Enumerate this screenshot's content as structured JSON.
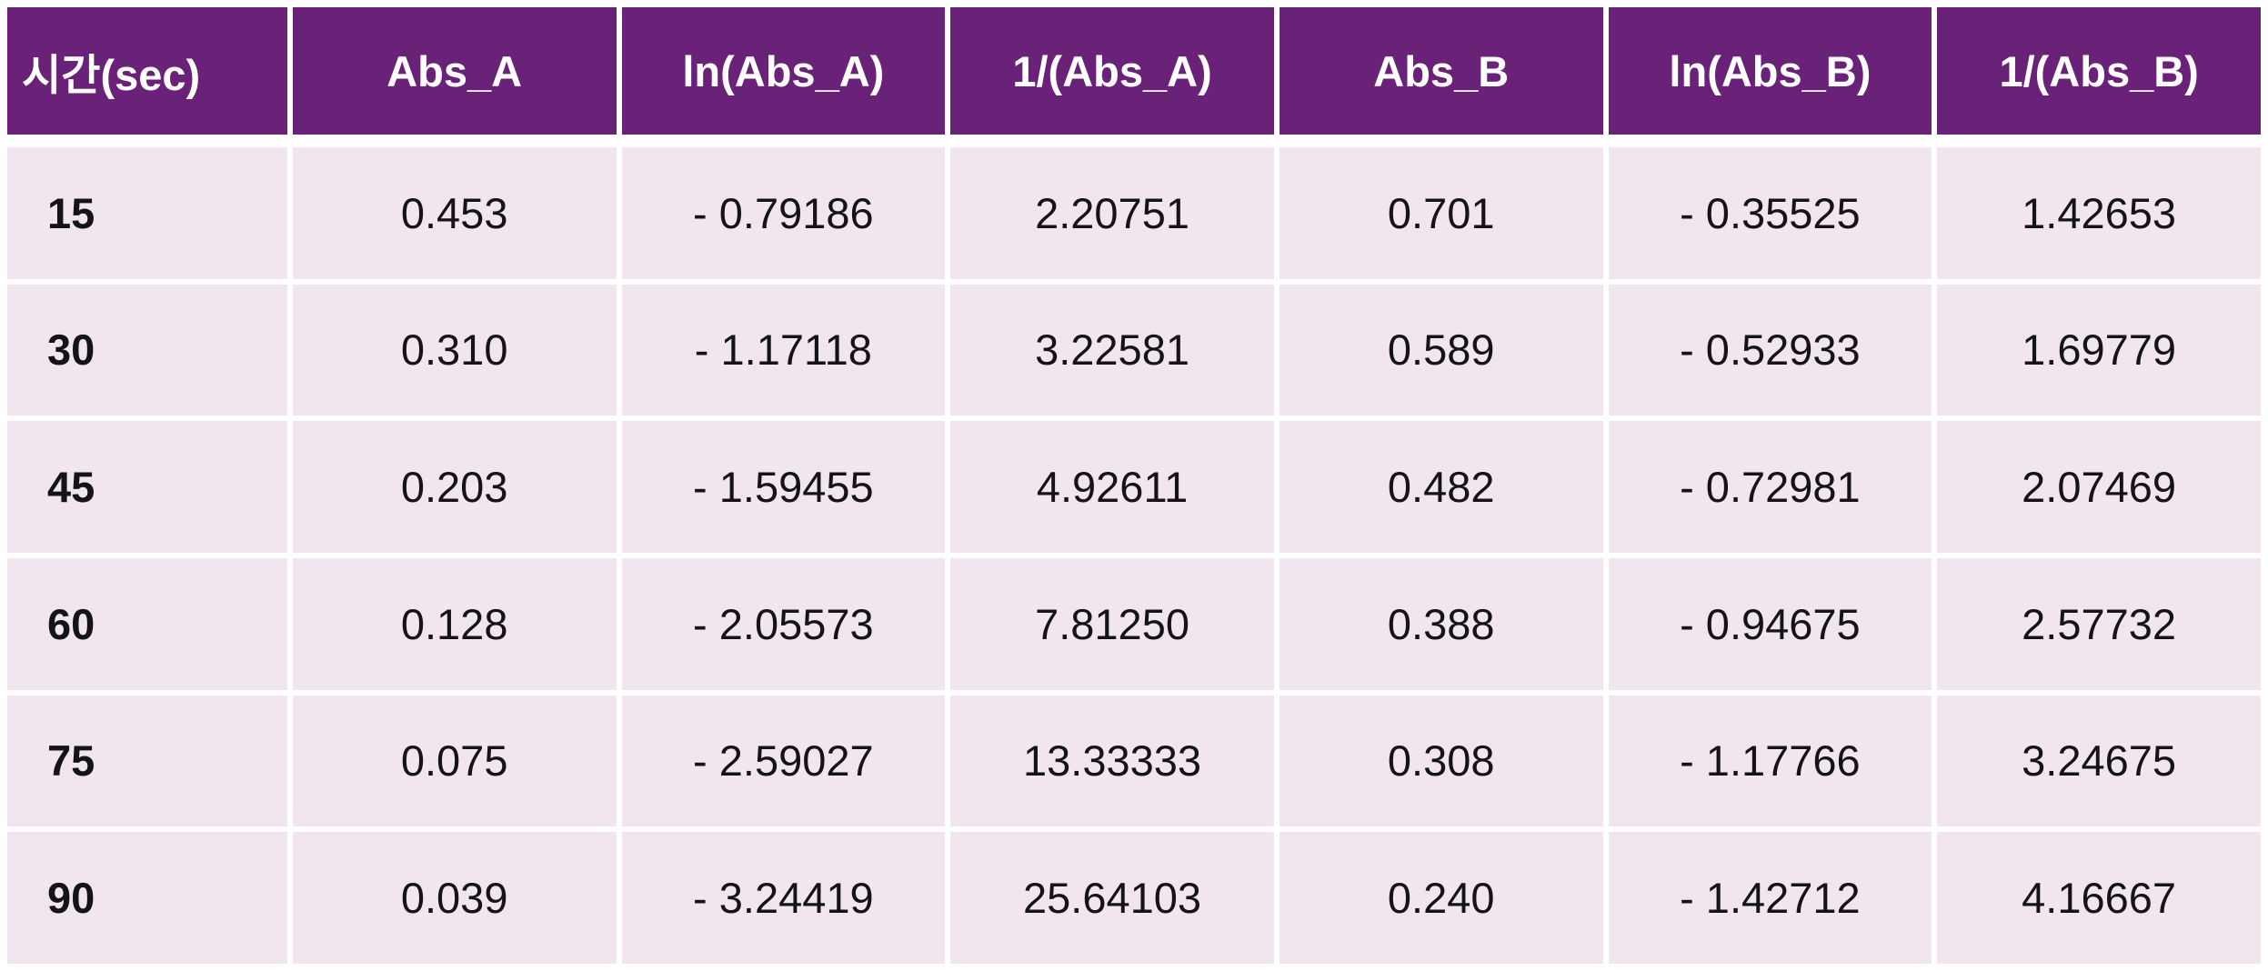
{
  "chart_data": {
    "type": "table",
    "columns": [
      "시간(sec)",
      "Abs_A",
      "ln(Abs_A)",
      "1/(Abs_A)",
      "Abs_B",
      "ln(Abs_B)",
      "1/(Abs_B)"
    ],
    "rows": [
      [
        "15",
        "0.453",
        "- 0.79186",
        "2.20751",
        "0.701",
        "- 0.35525",
        "1.42653"
      ],
      [
        "30",
        "0.310",
        "- 1.17118",
        "3.22581",
        "0.589",
        "- 0.52933",
        "1.69779"
      ],
      [
        "45",
        "0.203",
        "- 1.59455",
        "4.92611",
        "0.482",
        "- 0.72981",
        "2.07469"
      ],
      [
        "60",
        "0.128",
        "- 2.05573",
        "7.81250",
        "0.388",
        "- 0.94675",
        "2.57732"
      ],
      [
        "75",
        "0.075",
        "- 2.59027",
        "13.33333",
        "0.308",
        "- 1.17766",
        "3.24675"
      ],
      [
        "90",
        "0.039",
        "- 3.24419",
        "25.64103",
        "0.240",
        "- 1.42712",
        "4.16667"
      ]
    ],
    "layout": {
      "header_position": "top",
      "grid": "white-gaps",
      "first_column_role": "row-label"
    }
  },
  "colors": {
    "header_bg": "#6A2178",
    "header_text": "#FFFFFF",
    "cell_bg": "#F1E6EF",
    "grid": "#FFFFFF",
    "cell_text": "#141414"
  }
}
